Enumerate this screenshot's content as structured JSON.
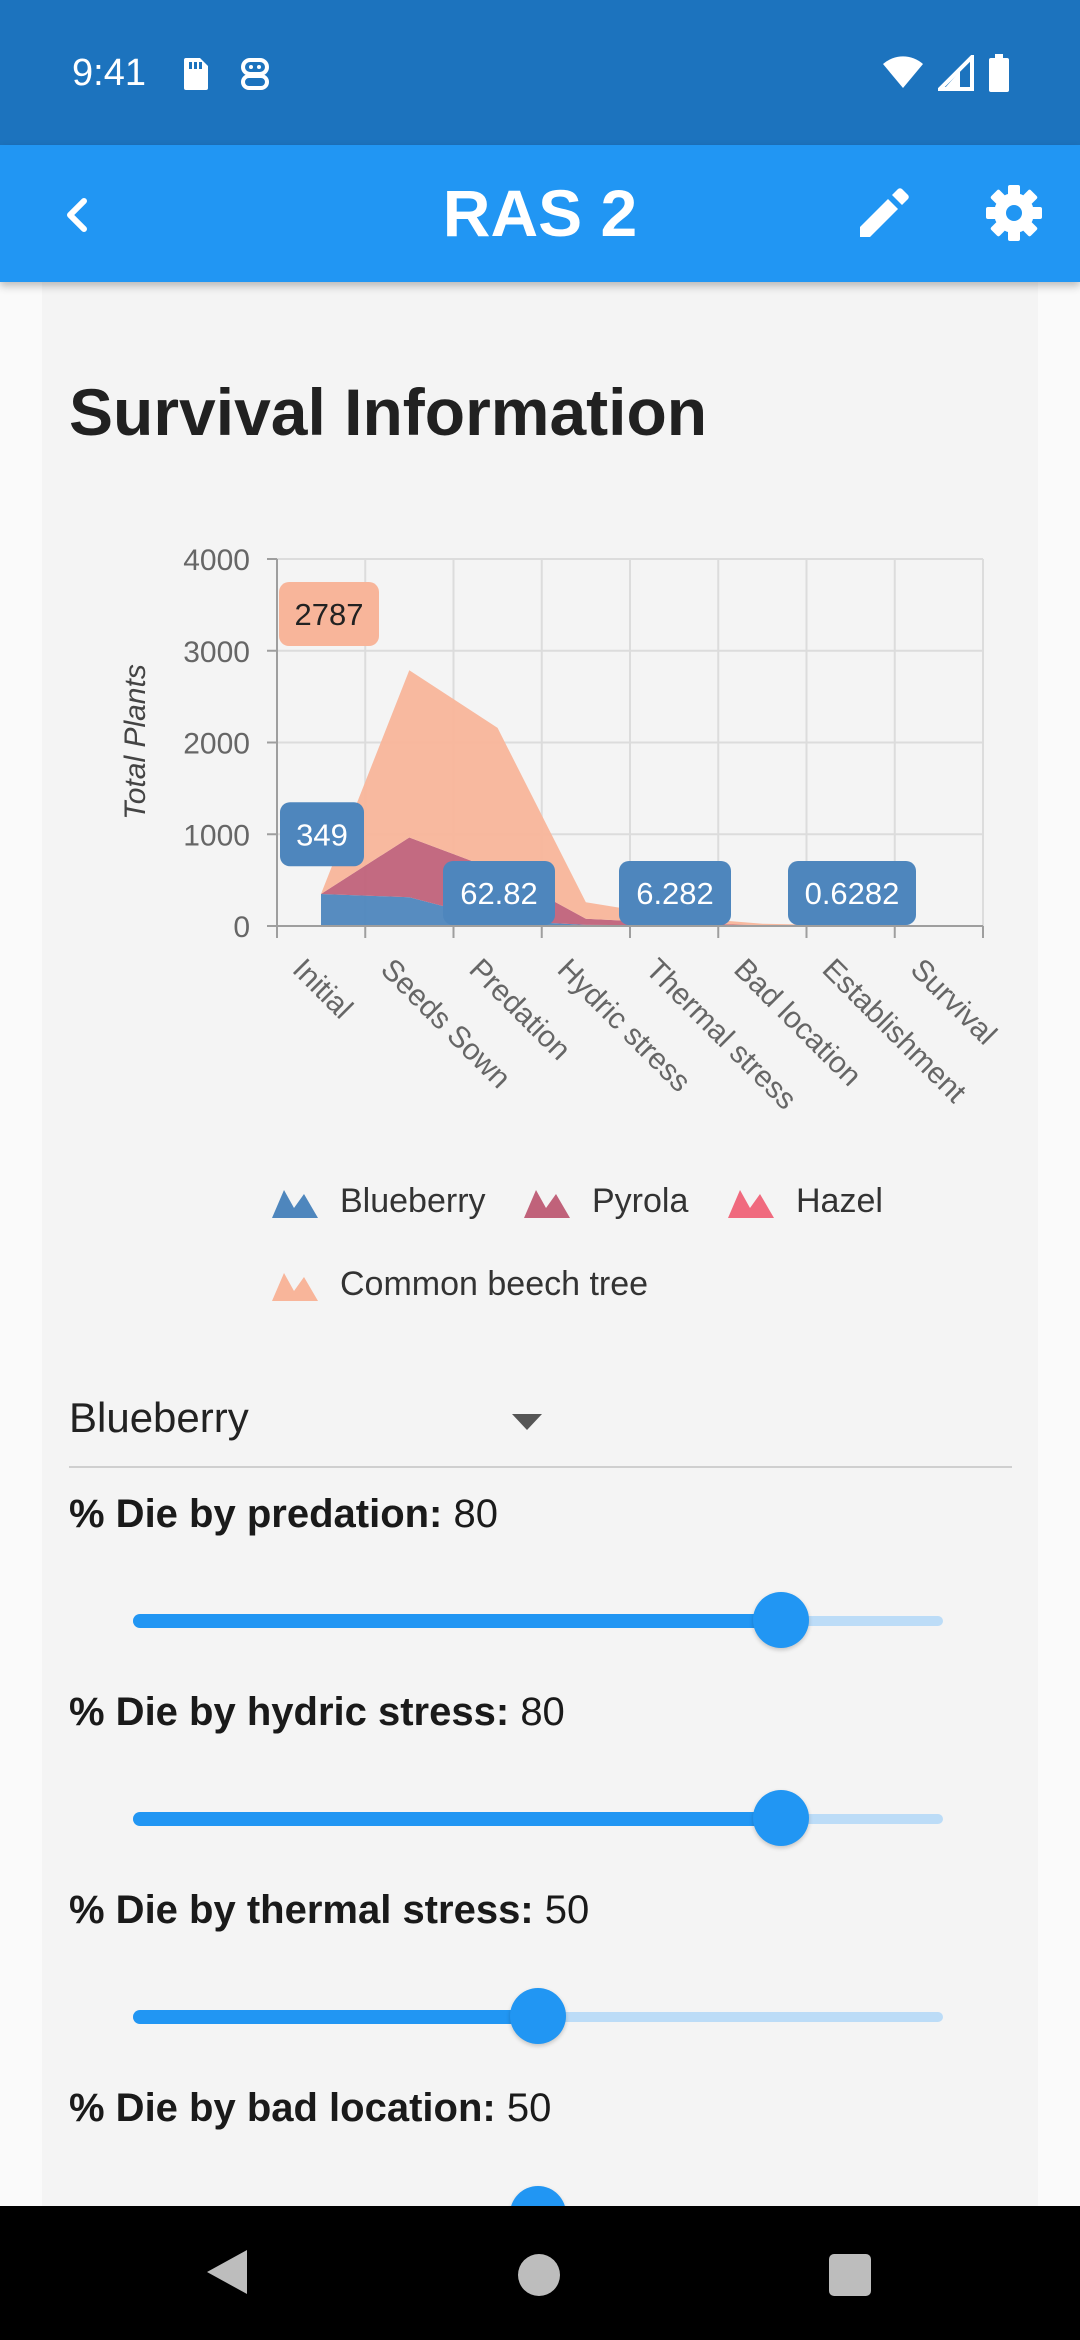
{
  "status_bar": {
    "time": "9:41"
  },
  "app_bar": {
    "title": "RAS 2"
  },
  "section": {
    "title": "Survival Information"
  },
  "chart_data": {
    "type": "area",
    "stacked": true,
    "ylabel": "Total Plants",
    "ylim": [
      0,
      4000
    ],
    "yticks": [
      "0",
      "1000",
      "2000",
      "3000",
      "4000"
    ],
    "categories": [
      "Initial",
      "Seeds Sown",
      "Predation",
      "Hydric stress",
      "Thermal stress",
      "Bad location",
      "Establishment",
      "Survival"
    ],
    "series": [
      {
        "name": "Blueberry",
        "color": "#4e86bd",
        "values": [
          349,
          314,
          62.82,
          12.56,
          6.282,
          3.14,
          0.6282,
          0.3
        ]
      },
      {
        "name": "Pyrola",
        "color": "#c0627a",
        "values": [
          0,
          651,
          541,
          66,
          24,
          6,
          2,
          0.5
        ]
      },
      {
        "name": "Hazel",
        "color": "#f06a7e",
        "values": [
          0,
          0,
          0,
          0,
          0,
          0,
          0,
          0
        ]
      },
      {
        "name": "Common beech tree",
        "color": "#f8b59a",
        "values": [
          0,
          1822,
          1555,
          180,
          73,
          15,
          4,
          1
        ]
      }
    ],
    "data_labels": [
      {
        "text": "2787",
        "color": "#f8b59a",
        "text_color": "#222222"
      },
      {
        "text": "349",
        "color": "#4e86bd",
        "text_color": "#ffffff"
      },
      {
        "text": "62.82",
        "color": "#4e86bd",
        "text_color": "#ffffff"
      },
      {
        "text": "6.282",
        "color": "#4e86bd",
        "text_color": "#ffffff"
      },
      {
        "text": "0.6282",
        "color": "#4e86bd",
        "text_color": "#ffffff"
      }
    ],
    "grid": true,
    "legend_position": "bottom"
  },
  "species_select": {
    "selected": "Blueberry"
  },
  "params": [
    {
      "label": "% Die by predation:",
      "value": "80",
      "fraction": 0.8
    },
    {
      "label": "% Die by hydric stress:",
      "value": "80",
      "fraction": 0.8
    },
    {
      "label": "% Die by thermal stress:",
      "value": "50",
      "fraction": 0.5
    },
    {
      "label": "% Die by bad location:",
      "value": "50",
      "fraction": 0.5
    }
  ],
  "colors": {
    "primary": "#2196f3",
    "status_bar": "#1c73be"
  }
}
